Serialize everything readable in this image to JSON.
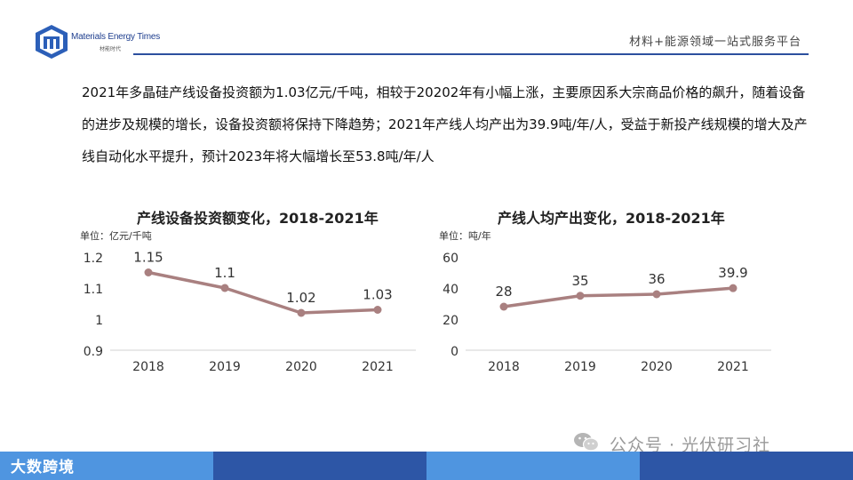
{
  "header": {
    "brand_name": "Materials Energy Times",
    "brand_cn": "材能时代",
    "tagline": "材料+能源领域一站式服务平台"
  },
  "intro": {
    "text": "2021年多晶硅产线设备投资额为1.03亿元/千吨，相较于20202年有小幅上涨，主要原因系大宗商品价格的飙升，随着设备的进步及规模的增长，设备投资额将保持下降趋势；2021年产线人均产出为39.9吨/年/人，受益于新投产线规模的增大及产线自动化水平提升，预计2023年将大幅增长至53.8吨/年/人"
  },
  "chart_data": [
    {
      "type": "line",
      "title": "产线设备投资额变化，2018-2021年",
      "unit_label": "单位：亿元/千吨",
      "categories": [
        "2018",
        "2019",
        "2020",
        "2021"
      ],
      "values": [
        1.15,
        1.1,
        1.02,
        1.03
      ],
      "data_labels": [
        "1.15",
        "1.1",
        "1.02",
        "1.03"
      ],
      "y_ticks": [
        "1.2",
        "1.1",
        "1",
        "0.9"
      ],
      "ylim": [
        0.9,
        1.2
      ],
      "grid": false,
      "legend": "none",
      "line_color": "#a98080"
    },
    {
      "type": "line",
      "title": "产线人均产出变化，2018-2021年",
      "unit_label": "单位：吨/年",
      "categories": [
        "2018",
        "2019",
        "2020",
        "2021"
      ],
      "values": [
        28,
        35,
        36,
        39.9
      ],
      "data_labels": [
        "28",
        "35",
        "36",
        "39.9"
      ],
      "y_ticks": [
        "60",
        "40",
        "20",
        "0"
      ],
      "ylim": [
        0,
        60
      ],
      "grid": false,
      "legend": "none",
      "line_color": "#a98080"
    }
  ],
  "footer": {
    "logo_text": "大数跨境",
    "watermark": "公众号 · 光伏研习社"
  },
  "colors": {
    "accent_blue": "#2c4f9e",
    "footer_light": "#4f95e0",
    "footer_dark": "#2d56a6"
  }
}
